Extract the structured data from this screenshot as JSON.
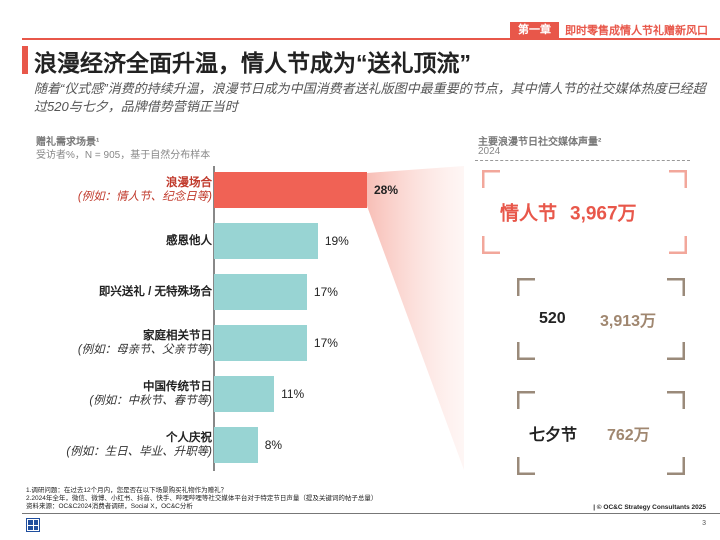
{
  "header": {
    "chapter_tag": "第一章",
    "chapter_title": "即时零售成情人节礼赠新风口",
    "title": "浪漫经济全面升温，情人节成为“送礼顶流”",
    "subtitle": "随着“仪式感”消费的持续升温，浪漫节日成为中国消费者送礼版图中最重要的节点，其中情人节的社交媒体热度已经超过520与七夕，品牌借势营销正当时"
  },
  "left_section": {
    "title": "赠礼需求场景¹",
    "subtitle": "受访者%，N = 905，基于自然分布样本"
  },
  "right_section": {
    "title": "主要浪漫节日社交媒体声量²",
    "subtitle": "2024"
  },
  "chart_data": [
    {
      "type": "bar",
      "orientation": "horizontal",
      "title": "赠礼需求场景¹",
      "subtitle": "受访者%，N = 905，基于自然分布样本",
      "unit": "%",
      "categories": [
        {
          "label": "浪漫场合",
          "note": "(例如：情人节、纪念日等)"
        },
        {
          "label": "感恩他人",
          "note": ""
        },
        {
          "label": "即兴送礼 / 无特殊场合",
          "note": ""
        },
        {
          "label": "家庭相关节日",
          "note": "(例如：母亲节、父亲节等)"
        },
        {
          "label": "中国传统节日",
          "note": "(例如：中秋节、春节等)"
        },
        {
          "label": "个人庆祝",
          "note": "(例如：生日、毕业、升职等)"
        }
      ],
      "values": [
        28,
        19,
        17,
        17,
        11,
        8
      ],
      "value_labels": [
        "28%",
        "19%",
        "17%",
        "17%",
        "11%",
        "8%"
      ],
      "highlight_index": 0,
      "colors": {
        "highlight": "#f06255",
        "default": "#98d4d3"
      },
      "xlim": [
        0,
        40
      ]
    },
    {
      "type": "table",
      "title": "主要浪漫节日社交媒体声量²",
      "subtitle": "2024",
      "unit": "万",
      "rows": [
        {
          "name": "情人节",
          "value": 3967,
          "value_label": "3,967万",
          "highlight": true
        },
        {
          "name": "520",
          "value": 3913,
          "value_label": "3,913万",
          "highlight": false
        },
        {
          "name": "七夕节",
          "value": 762,
          "value_label": "762万",
          "highlight": false
        }
      ],
      "colors": {
        "highlight_text": "#e8574a",
        "value_text": "#a08770",
        "name_text": "#222222",
        "highlight_bracket": "#f2a79b",
        "bracket": "#9a8a7a"
      }
    }
  ],
  "footer": {
    "note1": "1.调研问题：在过去12个月内，您是否在以下场景购买礼物作为赠礼？",
    "note2": "2.2024年全年，微信、微博、小红书、抖音、快手、哔哩哔哩等社交媒体平台对于特定节日声量（提及关键词的帖子总量）",
    "source": "资料来源：OC&C2024消费者调研，Social X，OC&C分析",
    "copyright": "| © OC&C Strategy Consultants 2025",
    "page_number": "3"
  }
}
